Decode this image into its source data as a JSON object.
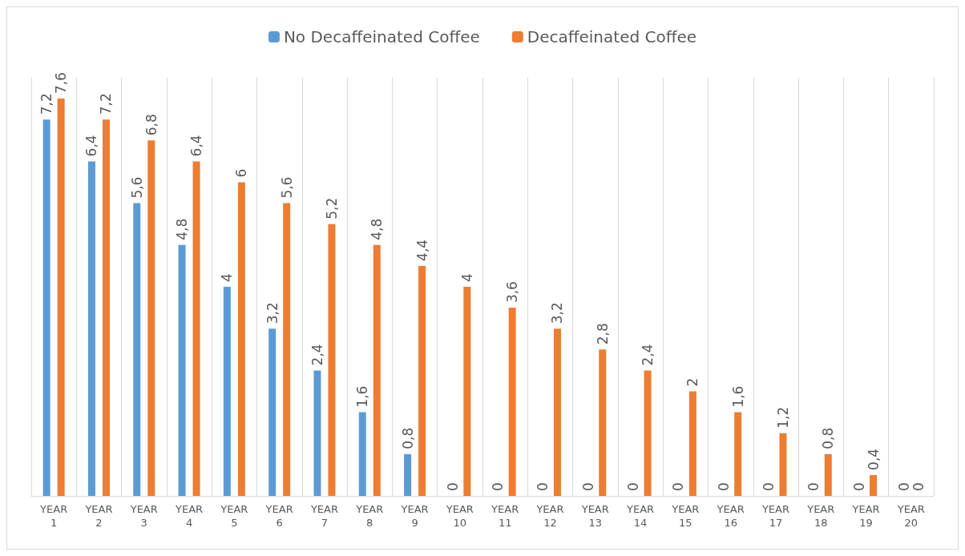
{
  "chart_data": {
    "type": "bar",
    "categories": [
      "YEAR 1",
      "YEAR 2",
      "YEAR 3",
      "YEAR 4",
      "YEAR 5",
      "YEAR 6",
      "YEAR 7",
      "YEAR 8",
      "YEAR 9",
      "YEAR 10",
      "YEAR 11",
      "YEAR 12",
      "YEAR 13",
      "YEAR 14",
      "YEAR 15",
      "YEAR 16",
      "YEAR 17",
      "YEAR 18",
      "YEAR 19",
      "YEAR 20"
    ],
    "series": [
      {
        "name": "No Decaffeinated Coffee",
        "color": "#5b9bd5",
        "values": [
          7.2,
          6.4,
          5.6,
          4.8,
          4.0,
          3.2,
          2.4,
          1.6,
          0.8,
          0,
          0,
          0,
          0,
          0,
          0,
          0,
          0,
          0,
          0,
          0
        ],
        "value_labels": [
          "7,2",
          "6,4",
          "5,6",
          "4,8",
          "4",
          "3,2",
          "2,4",
          "1,6",
          "0,8",
          "0",
          "0",
          "0",
          "0",
          "0",
          "0",
          "0",
          "0",
          "0",
          "0",
          "0"
        ]
      },
      {
        "name": "Decaffeinated Coffee",
        "color": "#ed7d31",
        "values": [
          7.6,
          7.2,
          6.8,
          6.4,
          6.0,
          5.6,
          5.2,
          4.8,
          4.4,
          4.0,
          3.6,
          3.2,
          2.8,
          2.4,
          2.0,
          1.6,
          1.2,
          0.8,
          0.4,
          0
        ],
        "value_labels": [
          "7,6",
          "7,2",
          "6,8",
          "6,4",
          "6",
          "5,6",
          "5,2",
          "4,8",
          "4,4",
          "4",
          "3,6",
          "3,2",
          "2,8",
          "2,4",
          "2",
          "1,6",
          "1,2",
          "0,8",
          "0,4",
          "0"
        ]
      }
    ],
    "grid": "x",
    "legend": "top",
    "tick_labels": "x"
  }
}
